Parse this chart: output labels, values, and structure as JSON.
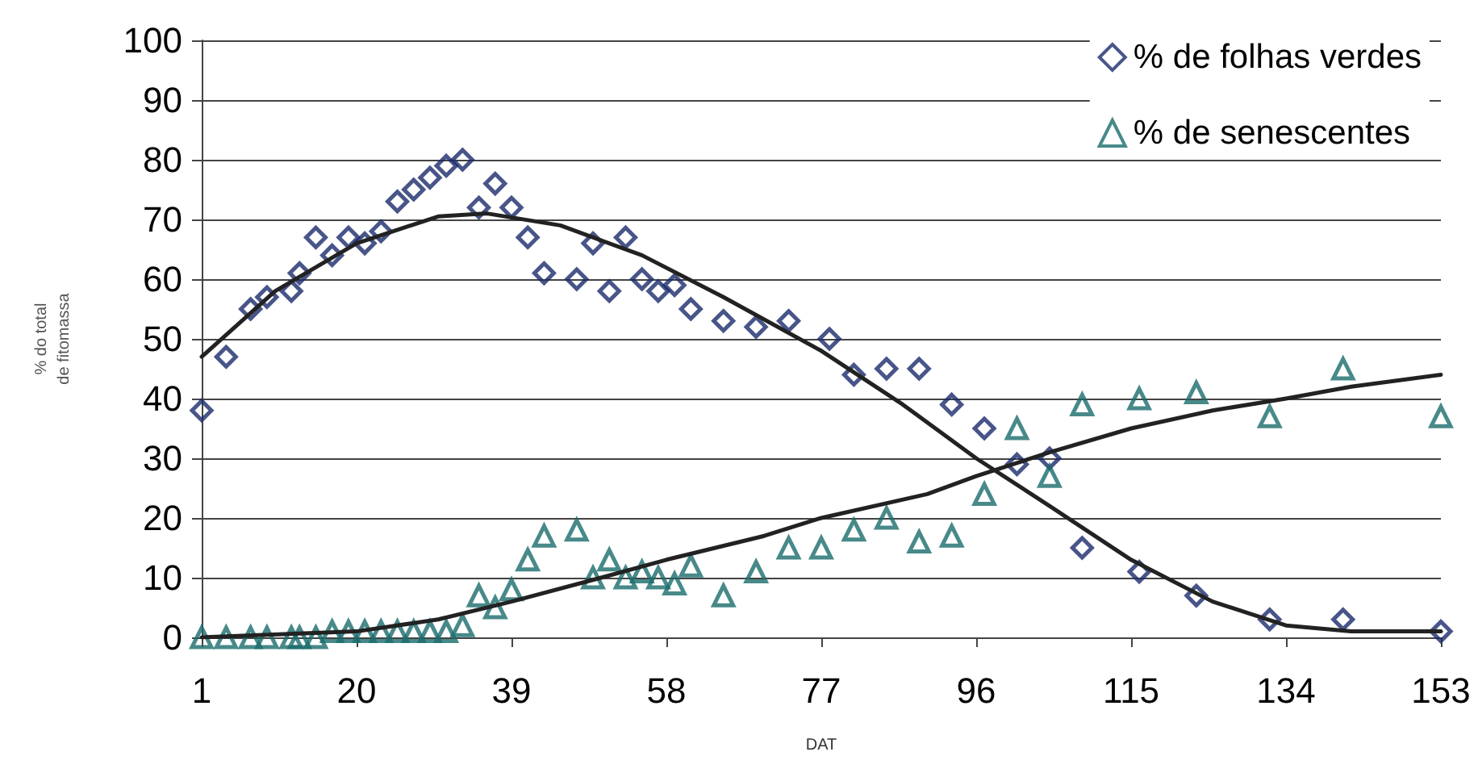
{
  "chart_data": {
    "type": "scatter",
    "xlabel": "DAT",
    "ylabel": "% do total\nde fitomassa",
    "xlim": [
      1,
      153
    ],
    "xticks": [
      1,
      20,
      39,
      58,
      77,
      96,
      115,
      134,
      153
    ],
    "ylim": [
      0,
      100
    ],
    "yticks": [
      0,
      10,
      20,
      30,
      40,
      50,
      60,
      70,
      80,
      90,
      100
    ],
    "grid": "y",
    "legend": "top right",
    "series": [
      {
        "name": "% de folhas verdes",
        "marker": "diamond",
        "color": "#1a2a6c",
        "x": [
          1,
          4,
          7,
          9,
          12,
          13,
          15,
          17,
          19,
          21,
          23,
          25,
          27,
          29,
          31,
          33,
          35,
          37,
          39,
          41,
          43,
          47,
          49,
          51,
          53,
          55,
          57,
          59,
          61,
          65,
          69,
          73,
          78,
          81,
          85,
          89,
          93,
          97,
          101,
          105,
          109,
          116,
          123,
          132,
          141,
          153
        ],
        "values": [
          38,
          47,
          55,
          57,
          58,
          61,
          67,
          64,
          67,
          66,
          68,
          73,
          75,
          77,
          79,
          80,
          72,
          76,
          72,
          67,
          61,
          60,
          66,
          58,
          67,
          60,
          58,
          59,
          55,
          53,
          52,
          53,
          50,
          44,
          45,
          45,
          39,
          35,
          29,
          30,
          15,
          11,
          7,
          3,
          3,
          1
        ]
      },
      {
        "name": "% de senescentes",
        "marker": "triangle",
        "color": "#1a6b6b",
        "x": [
          1,
          4,
          7,
          9,
          12,
          13,
          15,
          17,
          19,
          21,
          23,
          25,
          27,
          29,
          31,
          33,
          35,
          37,
          39,
          41,
          43,
          47,
          49,
          51,
          53,
          55,
          57,
          59,
          61,
          65,
          69,
          73,
          77,
          81,
          85,
          89,
          93,
          97,
          101,
          105,
          109,
          116,
          123,
          132,
          141,
          153
        ],
        "values": [
          0,
          0,
          0,
          0,
          0,
          0,
          0,
          1,
          1,
          1,
          1,
          1,
          1,
          1,
          1,
          2,
          7,
          5,
          8,
          13,
          17,
          18,
          10,
          13,
          10,
          11,
          10,
          9,
          12,
          7,
          11,
          15,
          15,
          18,
          20,
          16,
          17,
          24,
          35,
          27,
          39,
          40,
          41,
          37,
          45,
          37
        ]
      },
      {
        "type": "line",
        "marker": "none",
        "color": "#222222",
        "x": [
          1,
          10,
          20,
          30,
          36,
          45,
          55,
          65,
          77,
          87,
          96,
          105,
          115,
          125,
          134,
          142,
          153
        ],
        "values": [
          47,
          58,
          66,
          70.5,
          71,
          69,
          64,
          57,
          48,
          39,
          30,
          22,
          13,
          6,
          2,
          1,
          1
        ]
      },
      {
        "type": "line",
        "marker": "none",
        "color": "#222222",
        "x": [
          1,
          20,
          30,
          39,
          50,
          58,
          70,
          77,
          90,
          96,
          105,
          115,
          125,
          134,
          142,
          153
        ],
        "values": [
          0,
          1,
          3,
          6,
          10,
          13,
          17,
          20,
          24,
          27,
          31,
          35,
          38,
          40,
          42,
          44
        ]
      }
    ]
  }
}
